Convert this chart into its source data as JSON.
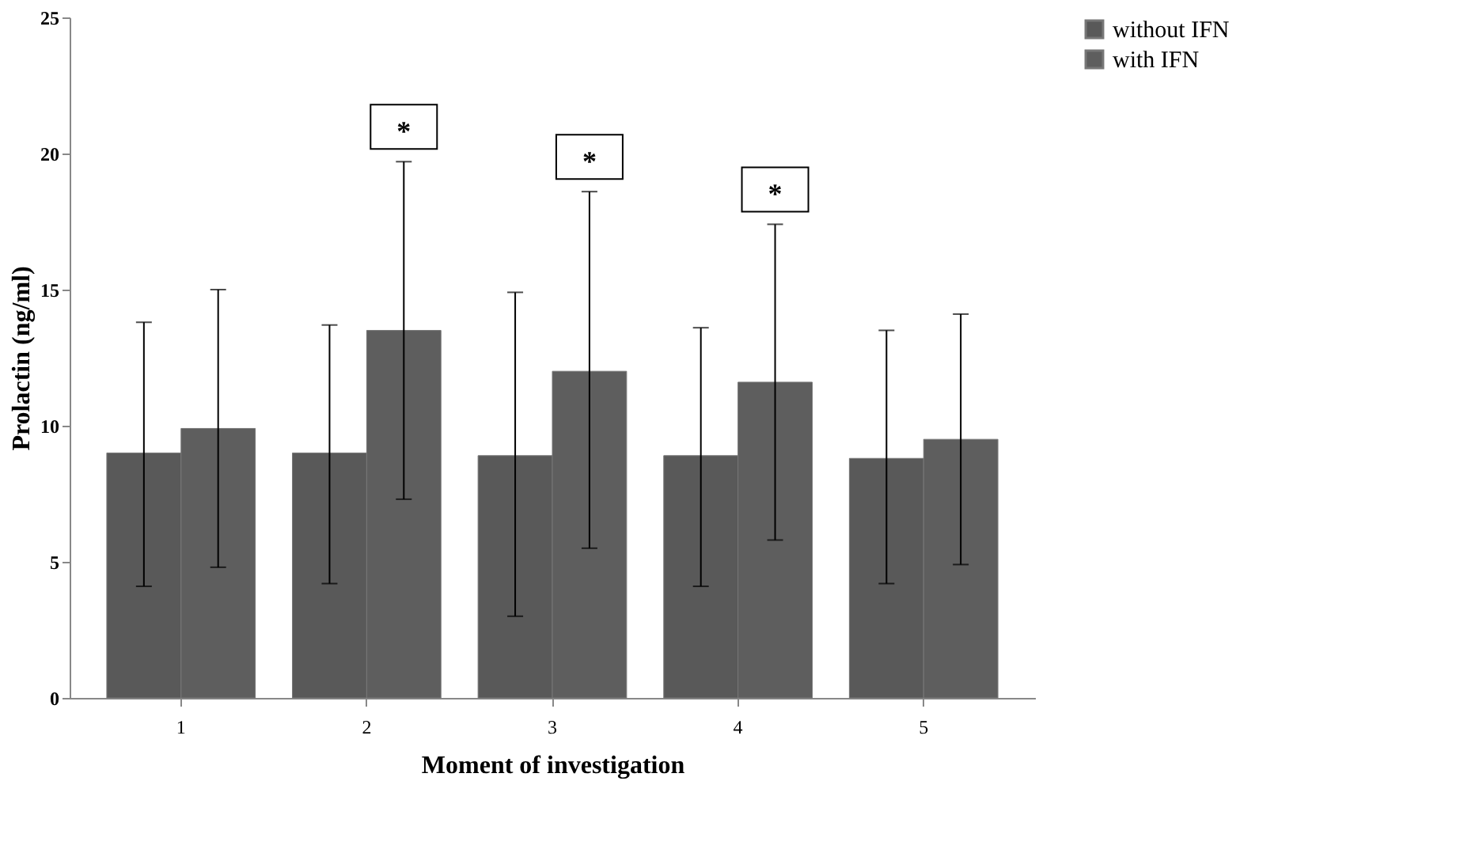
{
  "chart_data": {
    "type": "bar",
    "xlabel": "Moment of investigation",
    "ylabel": "Prolactin (ng/ml)",
    "categories": [
      "1",
      "2",
      "3",
      "4",
      "5"
    ],
    "series": [
      {
        "name": "without IFN",
        "color": "#595959",
        "values": [
          9.0,
          9.0,
          8.9,
          8.9,
          8.8
        ],
        "errors": [
          [
            4.1,
            13.8
          ],
          [
            4.2,
            13.7
          ],
          [
            3.0,
            14.9
          ],
          [
            4.1,
            13.6
          ],
          [
            4.2,
            13.5
          ]
        ]
      },
      {
        "name": "with IFN",
        "color": "#5e5e5e",
        "values": [
          9.9,
          13.5,
          12.0,
          11.6,
          9.5
        ],
        "errors": [
          [
            4.8,
            15.0
          ],
          [
            7.3,
            19.7
          ],
          [
            5.5,
            18.6
          ],
          [
            5.8,
            17.4
          ],
          [
            4.9,
            14.1
          ]
        ]
      }
    ],
    "annotations": [
      "*",
      "*",
      "*"
    ],
    "ylim": [
      0,
      25
    ],
    "yticks": [
      0,
      5,
      10,
      15,
      20,
      25
    ],
    "grid": false,
    "legend": "right"
  }
}
